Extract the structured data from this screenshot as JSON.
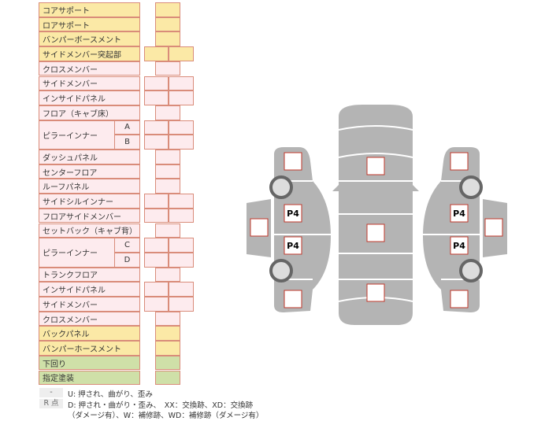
{
  "rows": [
    {
      "label": "コアサポート",
      "color": "y",
      "cells": 1
    },
    {
      "label": "ロアサポート",
      "color": "y",
      "cells": 1
    },
    {
      "label": "バンパーボースメント",
      "color": "y",
      "cells": 1
    },
    {
      "label": "サイドメンバー突起部",
      "color": "y",
      "cells": 2
    },
    {
      "label": "クロスメンバー",
      "color": "p",
      "cells": 1
    },
    {
      "label": "サイドメンバー",
      "color": "p",
      "cells": 2
    },
    {
      "label": "インサイドパネル",
      "color": "p",
      "cells": 2
    },
    {
      "label": "フロア（キャブ床）",
      "color": "p",
      "cells": 1
    },
    {
      "label": "ピラーインナー",
      "color": "p",
      "cells": 2,
      "subs": [
        "A",
        "B"
      ]
    },
    {
      "label": "ダッシュパネル",
      "color": "p",
      "cells": 1
    },
    {
      "label": "センターフロア",
      "color": "p",
      "cells": 1
    },
    {
      "label": "ルーフパネル",
      "color": "p",
      "cells": 1
    },
    {
      "label": "サイドシルインナー",
      "color": "p",
      "cells": 2
    },
    {
      "label": "フロアサイドメンバー",
      "color": "p",
      "cells": 2
    },
    {
      "label": "セットバック（キャブ背）",
      "color": "p",
      "cells": 1
    },
    {
      "label": "ピラーインナー",
      "color": "p",
      "cells": 2,
      "subs": [
        "C",
        "D"
      ]
    },
    {
      "label": "トランクフロア",
      "color": "p",
      "cells": 1
    },
    {
      "label": "インサイドパネル",
      "color": "p",
      "cells": 2
    },
    {
      "label": "サイドメンバー",
      "color": "p",
      "cells": 2
    },
    {
      "label": "クロスメンバー",
      "color": "p",
      "cells": 1
    },
    {
      "label": "バックパネル",
      "color": "y",
      "cells": 1
    },
    {
      "label": "バンパーホースメント",
      "color": "y",
      "cells": 1
    },
    {
      "label": "下回り",
      "color": "g",
      "cells": 1
    },
    {
      "label": "指定塗装",
      "color": "g",
      "cells": 1
    }
  ],
  "legend": {
    "dash_key": "-",
    "dash_text": "U: 押され、曲がり、歪み",
    "r_key": "R 点",
    "r_text1": "D: 押され・曲がり・歪み、　XX：交換跡、XD：交換跡",
    "r_text2": "（ダメージ有）、W：補修跡、WD：補修跡（ダメージ有）"
  },
  "diagram": {
    "p4": "P4"
  },
  "colors": {
    "yellow": "#fbe9a6",
    "pink": "#fdebee",
    "green": "#cfe0a8",
    "border": "#d98c7a",
    "body": "#b4b4b4"
  }
}
